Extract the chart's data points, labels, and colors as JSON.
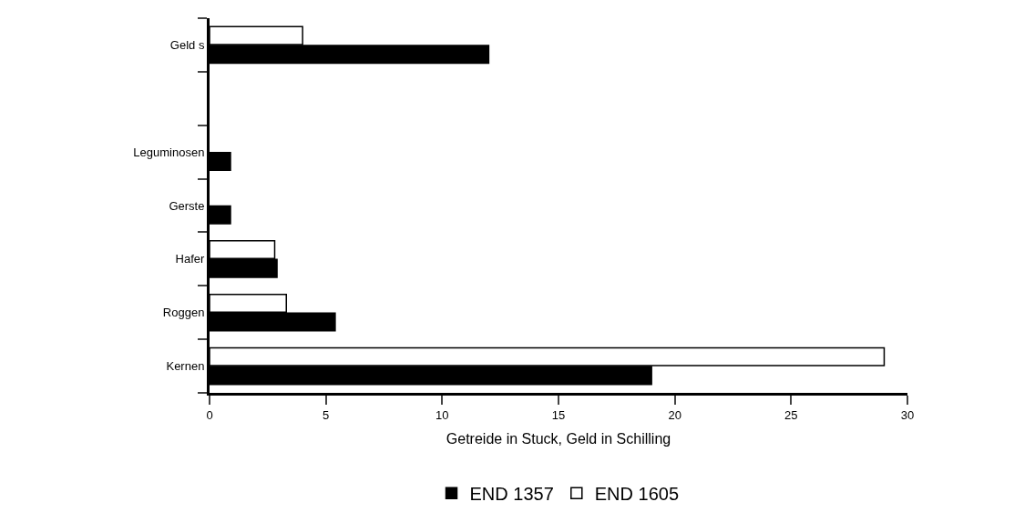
{
  "chart_data": {
    "type": "bar",
    "orientation": "horizontal",
    "xlabel": "Getreide in Stuck, Geld in Schilling",
    "categories": [
      "Geld s",
      null,
      "Leguminosen",
      "Gerste",
      "Hafer",
      "Roggen",
      "Kernen"
    ],
    "series": [
      {
        "name": "END 1605",
        "color": "#ffffff",
        "values": [
          4,
          null,
          null,
          null,
          2.8,
          3.3,
          29
        ]
      },
      {
        "name": "END 1357",
        "color": "#000000",
        "values": [
          12,
          null,
          0.9,
          0.9,
          2.9,
          5.4,
          19
        ]
      }
    ],
    "xlim": [
      0,
      30
    ],
    "xticks": [
      0,
      5,
      10,
      15,
      20,
      25,
      30
    ],
    "legend": "bottom"
  }
}
